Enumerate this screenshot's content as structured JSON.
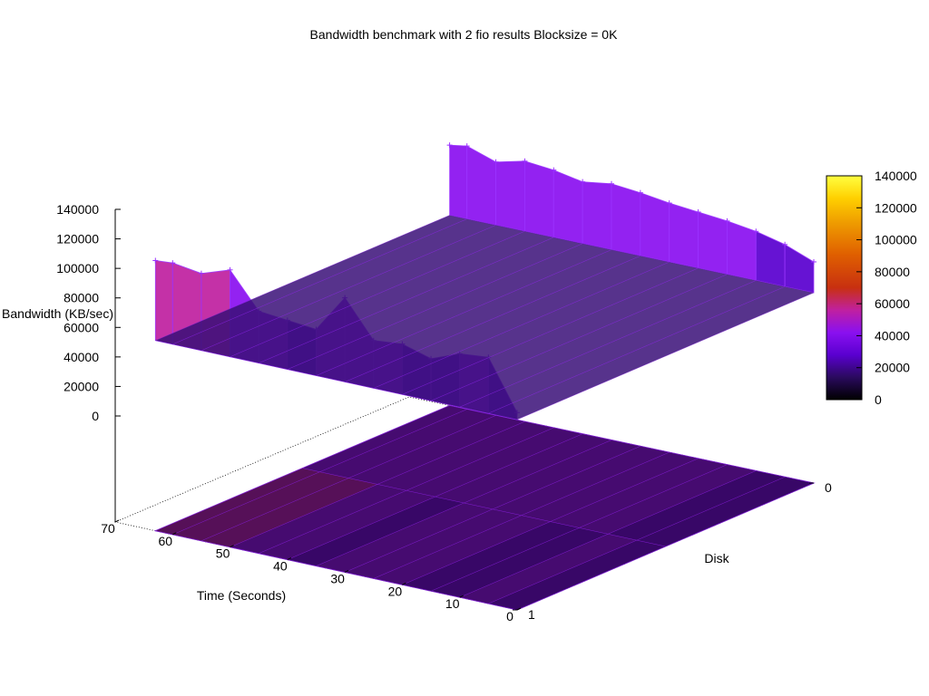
{
  "chart_data": {
    "type": "surface3d",
    "title": "Bandwidth benchmark with 2 fio results  Blocksize = 0K",
    "xlabel": "Time (Seconds)",
    "ylabel": "Disk",
    "zlabel": "Bandwidth (KB/sec)",
    "x_ticks": [
      "0",
      "10",
      "20",
      "30",
      "40",
      "50",
      "60",
      "70"
    ],
    "y_ticks": [
      "0",
      "1"
    ],
    "z_ticks": [
      "0",
      "20000",
      "40000",
      "60000",
      "80000",
      "100000",
      "120000",
      "140000"
    ],
    "colorbar_ticks": [
      "0",
      "20000",
      "40000",
      "60000",
      "80000",
      "100000",
      "120000",
      "140000"
    ],
    "xlim": [
      0,
      70
    ],
    "ylim": [
      0,
      1
    ],
    "zlim": [
      0,
      140000
    ],
    "colorbar_range": [
      0,
      140000
    ],
    "colormap": [
      "#000000",
      "#2a0a5e",
      "#5a00d0",
      "#8a10f0",
      "#c020a0",
      "#d83000",
      "#f08000",
      "#ffd000",
      "#ffff40"
    ],
    "series": [
      {
        "name": "",
        "disk": 0,
        "time": [
          0,
          5,
          10,
          15,
          20,
          25,
          30,
          35,
          40,
          45,
          50,
          55,
          60,
          63
        ],
        "bandwidth": [
          22000,
          30000,
          35000,
          38000,
          40000,
          42000,
          45000,
          47000,
          44000,
          48000,
          50000,
          45000,
          52000,
          50000
        ]
      },
      {
        "name": "",
        "disk": 1,
        "time": [
          0,
          5,
          10,
          15,
          20,
          25,
          30,
          35,
          40,
          45,
          50,
          55,
          60,
          63
        ],
        "bandwidth": [
          5000,
          40000,
          38000,
          30000,
          36000,
          34000,
          60000,
          33000,
          35000,
          37000,
          62000,
          55000,
          58000,
          57000
        ]
      }
    ]
  }
}
